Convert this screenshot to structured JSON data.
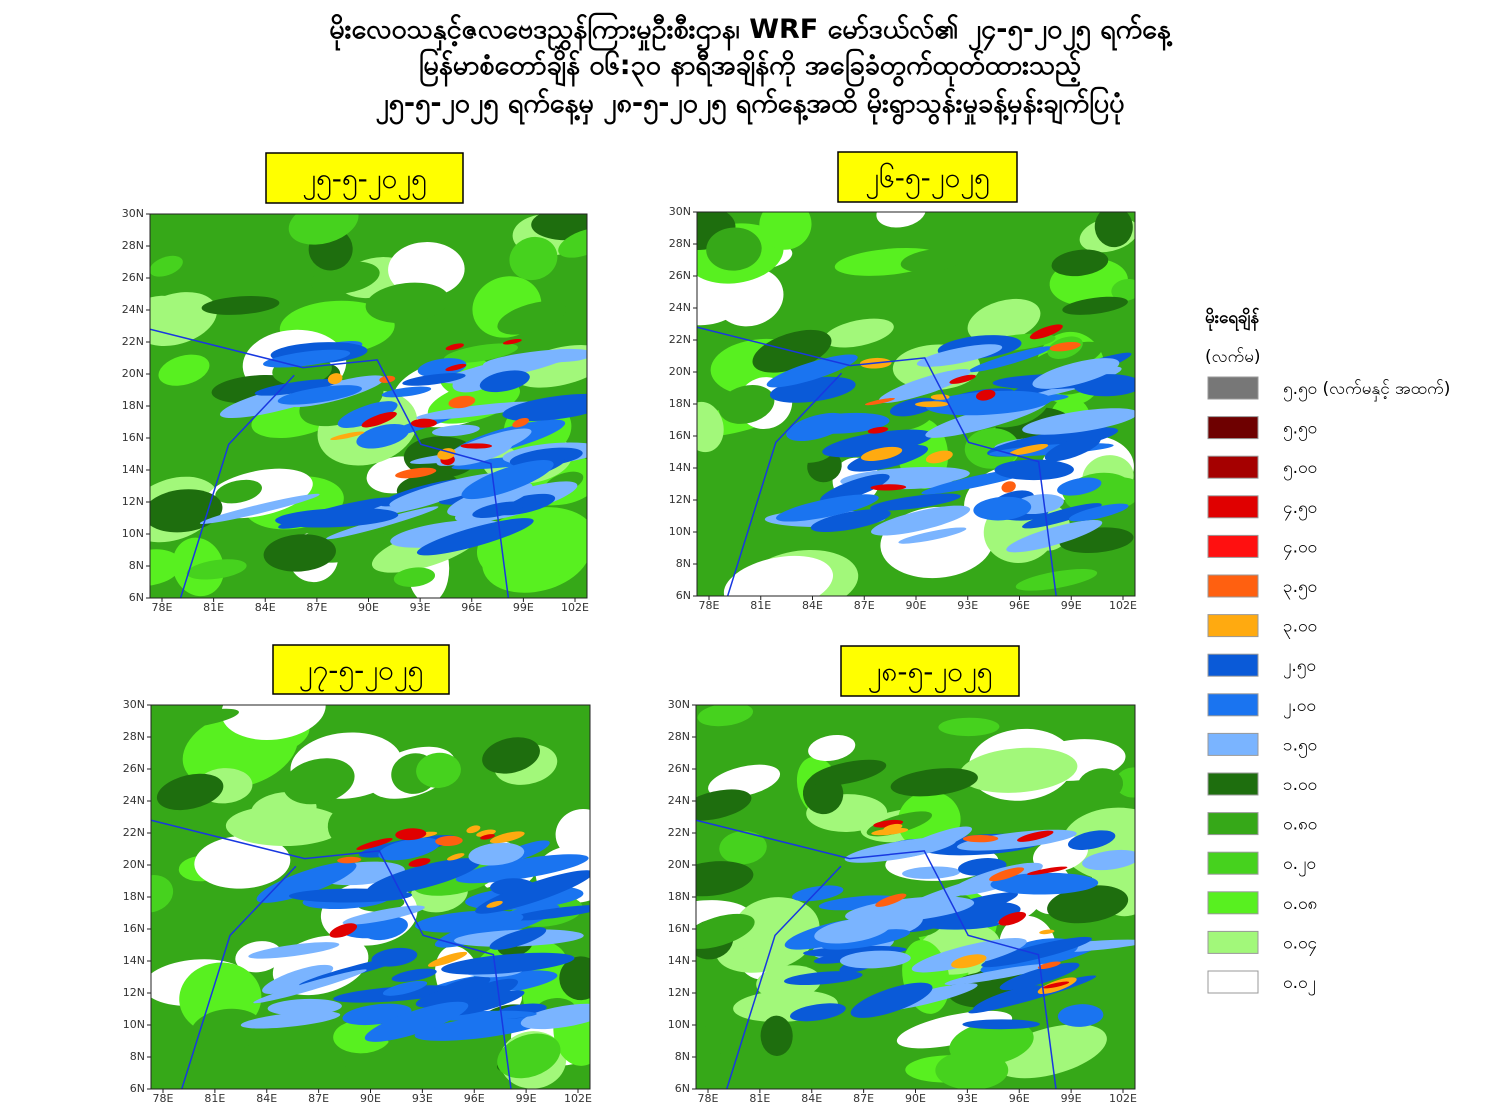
{
  "header": {
    "title": [
      "မိုးလေဝသနှင့်ဇလဗေဒညွှန်ကြားမှုဦးစီးဌာန၊ WRF မော်ဒယ်လ်၏ ၂၄-၅-၂၀၂၅ ရက်နေ့",
      "မြန်မာစံတော်ချိန် ၀၆:၃၀ နာရီအချိန်ကို အခြေခံတွက်ထုတ်ထားသည့်",
      "၂၅-၅-၂၀၂၅ ရက်နေ့မှ ၂၈-၅-၂၀၂၅ ရက်နေ့အထိ မိုးရွာသွန်းမှုခန့်မှန်းချက်ပြပုံ"
    ]
  },
  "axes": {
    "xticks": [
      "78E",
      "81E",
      "84E",
      "87E",
      "90E",
      "93E",
      "96E",
      "99E",
      "102E"
    ],
    "yticks": [
      "6N",
      "8N",
      "10N",
      "12N",
      "14N",
      "16N",
      "18N",
      "20N",
      "22N",
      "24N",
      "26N",
      "28N",
      "30N"
    ]
  },
  "panels": [
    {
      "date": "၂၅-၅-၂၀၂၅"
    },
    {
      "date": "၂၆-၅-၂၀၂၅"
    },
    {
      "date": "၂၇-၅-၂၀၂၅"
    },
    {
      "date": "၂၈-၅-၂၀၂၅"
    }
  ],
  "legend": {
    "title": "မိုးရေချိန်",
    "unit": "(လက်မ)",
    "items": [
      {
        "label": "၅.၅၀ (လက်မနှင့် အထက်)",
        "color": "#777777"
      },
      {
        "label": "၅.၅၀",
        "color": "#6e0000"
      },
      {
        "label": "၅.၀၀",
        "color": "#a50000"
      },
      {
        "label": "၄.၅၀",
        "color": "#e00000"
      },
      {
        "label": "၄.၀၀",
        "color": "#ff1010"
      },
      {
        "label": "၃.၅၀",
        "color": "#ff6010"
      },
      {
        "label": "၃.၀၀",
        "color": "#ffaa10"
      },
      {
        "label": "၂.၅၀",
        "color": "#0a5ad8"
      },
      {
        "label": "၂.၀၀",
        "color": "#1a74f0"
      },
      {
        "label": "၁.၅၀",
        "color": "#7ab4ff"
      },
      {
        "label": "၁.၀၀",
        "color": "#1e6e0e"
      },
      {
        "label": "၀.၈၀",
        "color": "#36a818"
      },
      {
        "label": "၀.၂၀",
        "color": "#46d21e"
      },
      {
        "label": "၀.၀၈",
        "color": "#58f020"
      },
      {
        "label": "၀.၀၄",
        "color": "#a2f87a"
      },
      {
        "label": "၀.၀၂",
        "color": "#ffffff"
      }
    ]
  }
}
